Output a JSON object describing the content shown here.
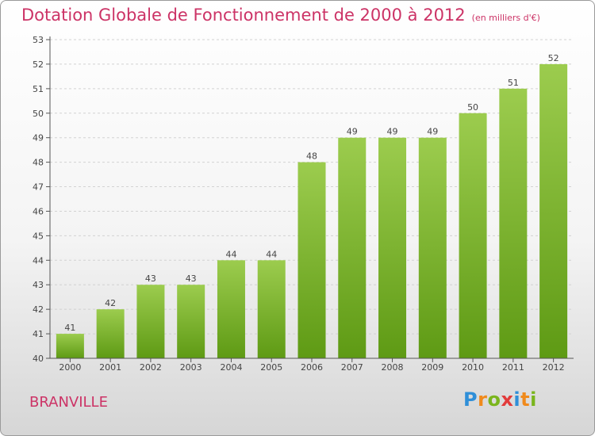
{
  "chart_data": {
    "type": "bar",
    "title": "Dotation Globale de Fonctionnement de 2000 à 2012",
    "subtitle": "(en milliers d'€)",
    "categories": [
      "2000",
      "2001",
      "2002",
      "2003",
      "2004",
      "2005",
      "2006",
      "2007",
      "2008",
      "2009",
      "2010",
      "2011",
      "2012"
    ],
    "values": [
      41,
      42,
      43,
      43,
      44,
      44,
      48,
      49,
      49,
      49,
      50,
      51,
      52
    ],
    "data_labels": [
      "41",
      "42",
      "43",
      "43",
      "44",
      "44",
      "48",
      "49",
      "49",
      "49",
      "50",
      "51",
      "52"
    ],
    "xlabel": "",
    "ylabel": "",
    "ylim": [
      40,
      53
    ],
    "yticks": [
      "40",
      "41",
      "42",
      "43",
      "44",
      "45",
      "46",
      "47",
      "48",
      "49",
      "50",
      "51",
      "52",
      "53"
    ],
    "grid": true,
    "bar_color_top": "#9ccc4e",
    "bar_color_bottom": "#5e9a14"
  },
  "commune": "BRANVILLE",
  "logo": {
    "letters": [
      "P",
      "r",
      "o",
      "x",
      "i",
      "t",
      "i"
    ],
    "colors": [
      "#2f8fd8",
      "#f08a1c",
      "#7ab51d",
      "#e23b3b",
      "#2f8fd8",
      "#f08a1c",
      "#7ab51d"
    ]
  }
}
